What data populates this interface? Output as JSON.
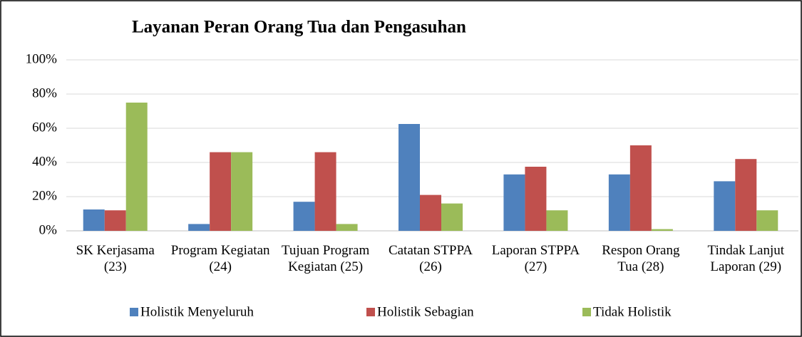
{
  "chart_data": {
    "type": "bar",
    "title": "Layanan Peran Orang Tua dan Pengasuhan",
    "categories": [
      "SK Kerjasama (23)",
      "Program Kegiatan (24)",
      "Tujuan Program Kegiatan (25)",
      "Catatan STPPA (26)",
      "Laporan STPPA (27)",
      "Respon Orang Tua (28)",
      "Tindak Lanjut Laporan (29)"
    ],
    "series": [
      {
        "name": "Holistik Menyeluruh",
        "color": "#4f81bd",
        "values": [
          12.5,
          4,
          17,
          62.5,
          33,
          33,
          29
        ]
      },
      {
        "name": "Holistik Sebagian",
        "color": "#c0504d",
        "values": [
          12,
          46,
          46,
          21,
          37.5,
          50,
          42
        ]
      },
      {
        "name": "Tidak Holistik",
        "color": "#9bbb59",
        "values": [
          75,
          46,
          4,
          16,
          12,
          1,
          12
        ]
      }
    ],
    "ylim": [
      0,
      100
    ],
    "yticks": [
      {
        "value": 0,
        "label": "0%"
      },
      {
        "value": 20,
        "label": "20%"
      },
      {
        "value": 40,
        "label": "40%"
      },
      {
        "value": 60,
        "label": "60%"
      },
      {
        "value": 80,
        "label": "80%"
      },
      {
        "value": 100,
        "label": "100%"
      }
    ],
    "grid": true,
    "legend": "bottom"
  }
}
